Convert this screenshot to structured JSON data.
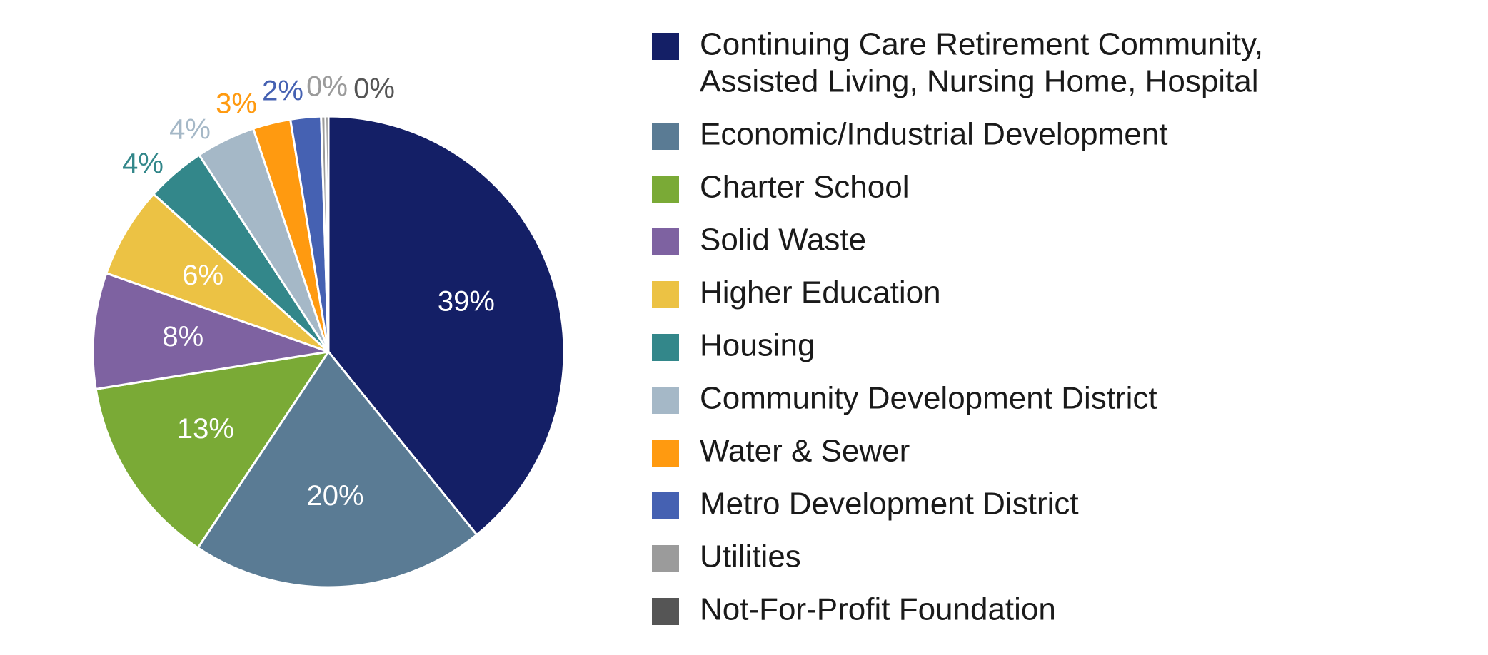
{
  "chart_data": {
    "type": "pie",
    "title": "",
    "start_angle_deg": 0,
    "direction": "clockwise",
    "slices": [
      {
        "label": "Continuing Care Retirement Community, Assisted Living, Nursing Home, Hospital",
        "legend_lines": [
          "Continuing Care Retirement Community,",
          "Assisted Living, Nursing Home, Hospital"
        ],
        "value": 39.4,
        "display": "39%",
        "color": "#141F66",
        "label_color": "#ffffff",
        "label_position": "inside"
      },
      {
        "label": "Economic/Industrial Development",
        "legend_lines": [
          "Economic/Industrial Development"
        ],
        "value": 20.3,
        "display": "20%",
        "color": "#5A7B94",
        "label_color": "#ffffff",
        "label_position": "inside"
      },
      {
        "label": "Charter School",
        "legend_lines": [
          "Charter School"
        ],
        "value": 13.2,
        "display": "13%",
        "color": "#7AAA36",
        "label_color": "#ffffff",
        "label_position": "inside"
      },
      {
        "label": "Solid Waste",
        "legend_lines": [
          "Solid Waste"
        ],
        "value": 8.0,
        "display": "8%",
        "color": "#7E62A1",
        "label_color": "#ffffff",
        "label_position": "inside"
      },
      {
        "label": "Higher Education",
        "legend_lines": [
          "Higher Education"
        ],
        "value": 6.3,
        "display": "6%",
        "color": "#ECC244",
        "label_color": "#ffffff",
        "label_position": "inside"
      },
      {
        "label": "Housing",
        "legend_lines": [
          "Housing"
        ],
        "value": 4.1,
        "display": "4%",
        "color": "#33878A",
        "label_color": "#33878A",
        "label_position": "outside"
      },
      {
        "label": "Community Development District",
        "legend_lines": [
          "Community Development District"
        ],
        "value": 4.1,
        "display": "4%",
        "color": "#A5B8C7",
        "label_color": "#A5B8C7",
        "label_position": "outside"
      },
      {
        "label": "Water & Sewer",
        "legend_lines": [
          "Water & Sewer"
        ],
        "value": 2.6,
        "display": "3%",
        "color": "#FF9A10",
        "label_color": "#FF9A10",
        "label_position": "outside"
      },
      {
        "label": "Metro Development District",
        "legend_lines": [
          "Metro Development District"
        ],
        "value": 2.1,
        "display": "2%",
        "color": "#4561B2",
        "label_color": "#4561B2",
        "label_position": "outside"
      },
      {
        "label": "Utilities",
        "legend_lines": [
          "Utilities"
        ],
        "value": 0.3,
        "display": "0%",
        "color": "#9B9B9B",
        "label_color": "#9B9B9B",
        "label_position": "outside"
      },
      {
        "label": "Not-For-Profit Foundation",
        "legend_lines": [
          "Not-For-Profit Foundation"
        ],
        "value": 0.2,
        "display": "0%",
        "color": "#555555",
        "label_color": "#555555",
        "label_position": "outside"
      }
    ],
    "legend_position": "right"
  }
}
